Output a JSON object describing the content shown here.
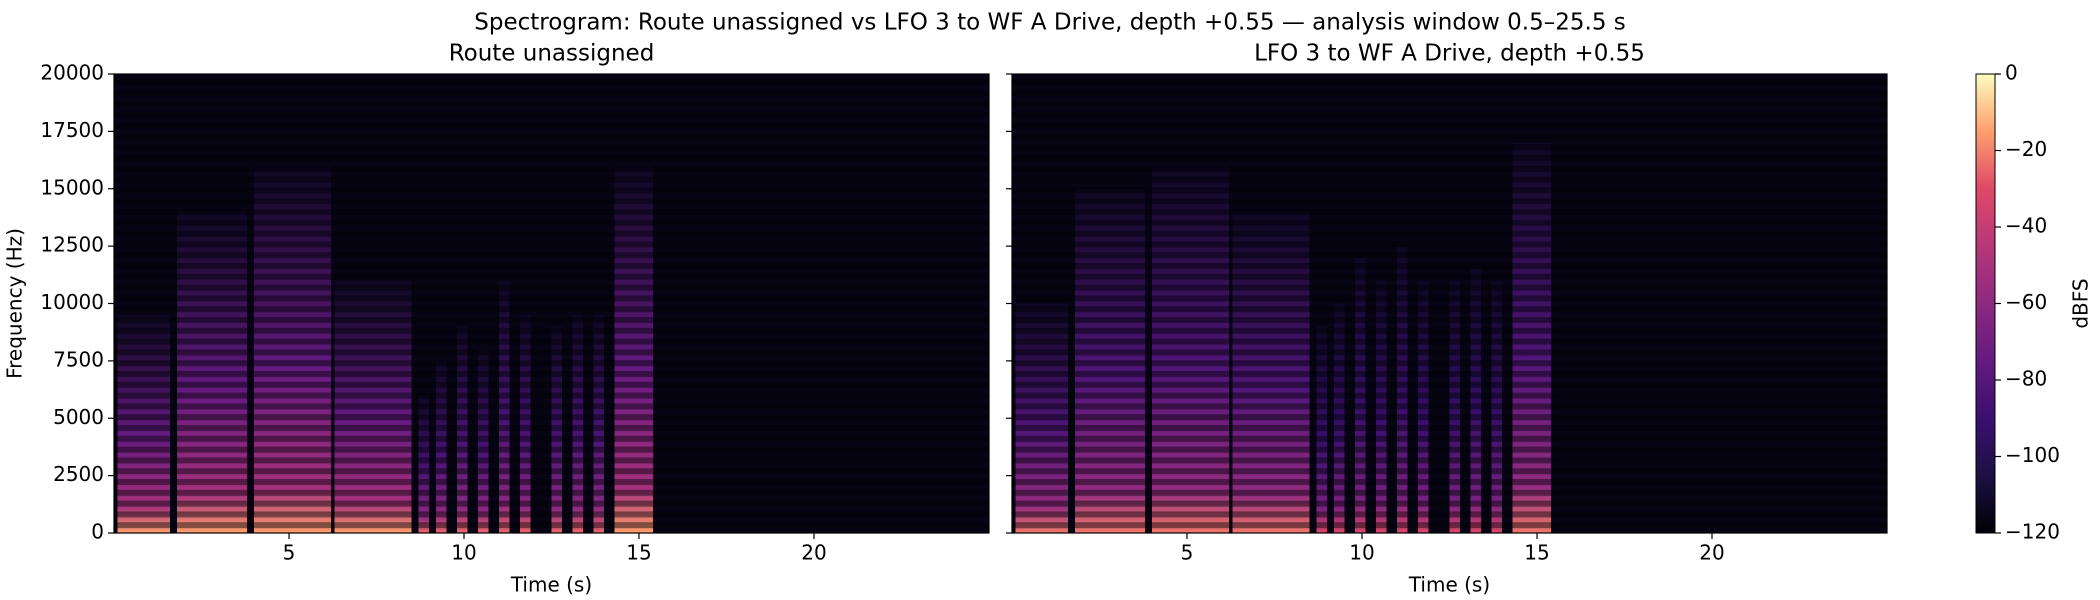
{
  "chart_data": {
    "type": "spectrogram",
    "title": "Spectrogram: Route unassigned vs LFO 3 to WF A Drive, depth +0.55 — analysis window 0.5–25.5 s",
    "panels": [
      {
        "title": "Route unassigned",
        "xlabel": "Time (s)",
        "ylabel": "Frequency (Hz)",
        "xlim": [
          0,
          25
        ],
        "xticks": [
          5,
          10,
          15,
          20
        ],
        "ylim": [
          0,
          20000
        ],
        "yticks": [
          0,
          2500,
          5000,
          7500,
          10000,
          12500,
          15000,
          17500,
          20000
        ],
        "events": {
          "start": [
            0.1,
            1.8,
            4.0,
            6.3,
            8.7,
            9.2,
            9.8,
            10.4,
            11.0,
            11.6,
            12.5,
            13.1,
            13.7,
            14.3
          ],
          "end": [
            1.6,
            3.8,
            6.2,
            8.5,
            9.0,
            9.5,
            10.1,
            10.7,
            11.3,
            11.9,
            12.8,
            13.4,
            14.0,
            15.4
          ],
          "top": [
            9500,
            14000,
            16000,
            11000,
            6000,
            7500,
            9000,
            8000,
            11000,
            9500,
            9000,
            9500,
            9500,
            16000
          ],
          "level": [
            -15,
            -15,
            -15,
            -15,
            -25,
            -25,
            -25,
            -25,
            -25,
            -25,
            -25,
            -25,
            -25,
            -15
          ]
        }
      },
      {
        "title": "LFO 3 to WF A Drive, depth +0.55",
        "xlabel": "Time (s)",
        "xlim": [
          0,
          25
        ],
        "xticks": [
          5,
          10,
          15,
          20
        ],
        "ylim": [
          0,
          20000
        ],
        "events": {
          "start": [
            0.1,
            1.8,
            4.0,
            6.3,
            8.7,
            9.2,
            9.8,
            10.4,
            11.0,
            11.6,
            12.5,
            13.1,
            13.7,
            14.3
          ],
          "end": [
            1.6,
            3.8,
            6.2,
            8.5,
            9.0,
            9.5,
            10.1,
            10.7,
            11.3,
            11.9,
            12.8,
            13.4,
            14.0,
            15.4
          ],
          "top": [
            10000,
            15000,
            16000,
            14000,
            9000,
            10000,
            12000,
            11000,
            12500,
            11000,
            11000,
            11500,
            11000,
            17000
          ],
          "level": [
            -22,
            -22,
            -22,
            -22,
            -32,
            -32,
            -32,
            -32,
            -32,
            -32,
            -32,
            -32,
            -32,
            -22
          ]
        }
      }
    ],
    "colorbar": {
      "label": "dBFS",
      "cmap": "magma",
      "clim": [
        -120,
        0
      ],
      "cticks": [
        {
          "value": -120,
          "label": "−120"
        },
        {
          "value": -100,
          "label": "−100"
        },
        {
          "value": -80,
          "label": "−80"
        },
        {
          "value": -60,
          "label": "−60"
        },
        {
          "value": -40,
          "label": "−40"
        },
        {
          "value": -20,
          "label": "−20"
        },
        0
      ]
    }
  }
}
